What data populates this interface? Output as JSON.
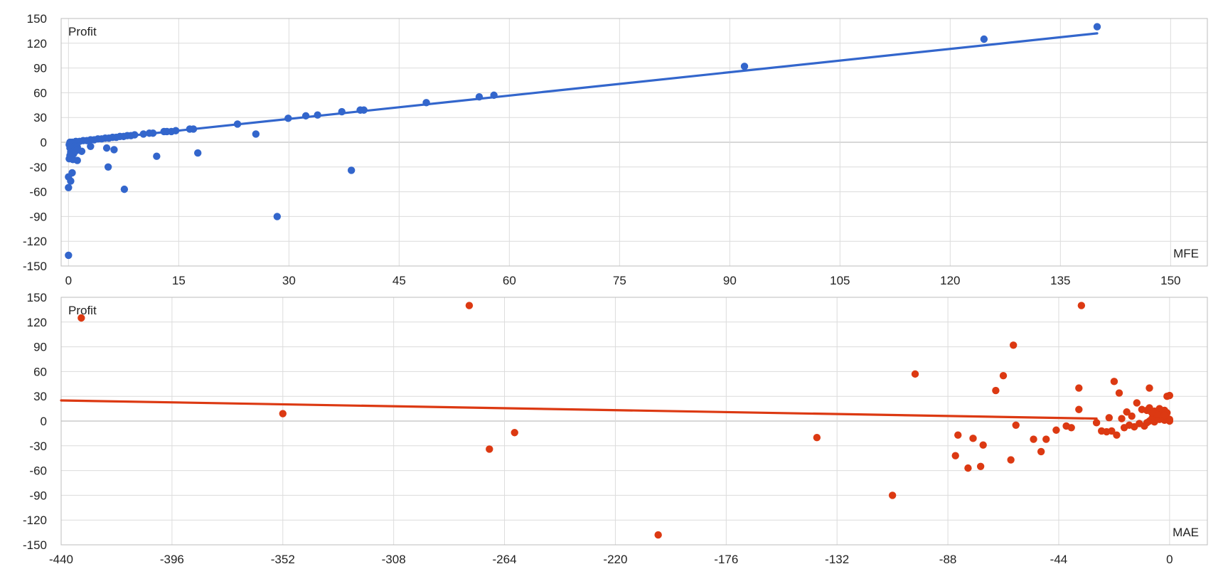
{
  "chart_data": [
    {
      "type": "scatter",
      "xlabel": "MFE",
      "ylabel": "Profit",
      "xlim": [
        -1,
        155
      ],
      "ylim": [
        -150,
        150
      ],
      "xticks": [
        0,
        15,
        30,
        45,
        60,
        75,
        90,
        105,
        120,
        135,
        150
      ],
      "yticks": [
        -150,
        -120,
        -90,
        -60,
        -30,
        0,
        30,
        60,
        90,
        120,
        150
      ],
      "grid": true,
      "color": "#3366cc",
      "trendline": {
        "x": [
          0,
          140
        ],
        "y": [
          0,
          132
        ]
      },
      "points": [
        [
          140,
          140
        ],
        [
          124.6,
          125
        ],
        [
          92,
          92
        ],
        [
          57.9,
          57
        ],
        [
          55.9,
          55
        ],
        [
          48.7,
          48
        ],
        [
          40.2,
          39
        ],
        [
          39.7,
          39
        ],
        [
          37.2,
          37
        ],
        [
          33.9,
          33
        ],
        [
          32.3,
          32
        ],
        [
          29.9,
          29
        ],
        [
          23,
          22
        ],
        [
          17,
          16
        ],
        [
          16.5,
          16
        ],
        [
          14.6,
          14
        ],
        [
          14,
          13
        ],
        [
          13.4,
          13
        ],
        [
          13,
          13
        ],
        [
          11.5,
          11
        ],
        [
          11,
          11
        ],
        [
          10.2,
          10
        ],
        [
          9,
          9
        ],
        [
          8.5,
          8
        ],
        [
          8,
          8
        ],
        [
          7.5,
          7
        ],
        [
          7,
          7
        ],
        [
          6.5,
          6
        ],
        [
          6,
          6
        ],
        [
          5.5,
          5
        ],
        [
          5,
          5
        ],
        [
          4.5,
          4
        ],
        [
          4,
          4
        ],
        [
          3.5,
          3
        ],
        [
          3,
          3
        ],
        [
          2.5,
          2
        ],
        [
          2,
          2
        ],
        [
          1.5,
          1
        ],
        [
          1,
          1
        ],
        [
          0.5,
          0
        ],
        [
          0.2,
          0
        ],
        [
          0.3,
          -1
        ],
        [
          0.6,
          -2
        ],
        [
          0.1,
          -3
        ],
        [
          0.4,
          -4
        ],
        [
          0.8,
          -5
        ],
        [
          1.2,
          -6
        ],
        [
          0.2,
          -7
        ],
        [
          0.5,
          -8
        ],
        [
          0.9,
          -9
        ],
        [
          1.1,
          -10
        ],
        [
          0.3,
          -12
        ],
        [
          0.7,
          -14
        ],
        [
          0.2,
          -16
        ],
        [
          0.4,
          -18
        ],
        [
          0.1,
          -20
        ],
        [
          0.6,
          -21
        ],
        [
          1.2,
          -22
        ],
        [
          1.8,
          -11
        ],
        [
          3,
          -5
        ],
        [
          5.2,
          -7
        ],
        [
          6.2,
          -9
        ],
        [
          5.4,
          -30
        ],
        [
          25.5,
          10
        ],
        [
          12,
          -17
        ],
        [
          17.6,
          -13
        ],
        [
          38.5,
          -34
        ],
        [
          0.5,
          -37
        ],
        [
          0,
          -42
        ],
        [
          0.3,
          -47
        ],
        [
          0,
          -55
        ],
        [
          7.6,
          -57
        ],
        [
          28.4,
          -90
        ],
        [
          0,
          -137
        ]
      ]
    },
    {
      "type": "scatter",
      "xlabel": "MAE",
      "ylabel": "Profit",
      "xlim": [
        -440,
        15
      ],
      "ylim": [
        -150,
        150
      ],
      "xticks": [
        -440,
        -396,
        -352,
        -308,
        -264,
        -220,
        -176,
        -132,
        -88,
        -44,
        0
      ],
      "yticks": [
        -150,
        -120,
        -90,
        -60,
        -30,
        0,
        30,
        60,
        90,
        120,
        150
      ],
      "grid": true,
      "color": "#dc3912",
      "trendline": {
        "x": [
          -440,
          -29
        ],
        "y": [
          25,
          3
        ]
      },
      "points": [
        [
          -432,
          125
        ],
        [
          -278,
          140
        ],
        [
          -35,
          140
        ],
        [
          -62,
          92
        ],
        [
          -101,
          57
        ],
        [
          -66,
          55
        ],
        [
          -69,
          37
        ],
        [
          -36,
          40
        ],
        [
          -22,
          48
        ],
        [
          -20,
          34
        ],
        [
          -8,
          40
        ],
        [
          -36,
          14
        ],
        [
          -270,
          -34
        ],
        [
          -260,
          -14
        ],
        [
          -352,
          9
        ],
        [
          -203,
          -138
        ],
        [
          -140,
          -20
        ],
        [
          -110,
          -90
        ],
        [
          -85,
          -42
        ],
        [
          -84,
          -17
        ],
        [
          -80,
          -57
        ],
        [
          -78,
          -21
        ],
        [
          -75,
          -55
        ],
        [
          -74,
          -29
        ],
        [
          -63,
          -47
        ],
        [
          -61,
          -5
        ],
        [
          -54,
          -22
        ],
        [
          -51,
          -37
        ],
        [
          -49,
          -22
        ],
        [
          -45,
          -11
        ],
        [
          -41,
          -6
        ],
        [
          -39,
          -8
        ],
        [
          -29,
          -2
        ],
        [
          -27,
          -12
        ],
        [
          -25,
          -13
        ],
        [
          -23,
          -12
        ],
        [
          -21,
          -17
        ],
        [
          -18,
          -8
        ],
        [
          -16,
          -5
        ],
        [
          -14,
          -7
        ],
        [
          -12,
          -3
        ],
        [
          -10,
          -6
        ],
        [
          -9,
          -2
        ],
        [
          -8,
          0
        ],
        [
          -7,
          3
        ],
        [
          -6,
          -1
        ],
        [
          -5,
          5
        ],
        [
          -4,
          2
        ],
        [
          -3,
          8
        ],
        [
          -2,
          1
        ],
        [
          -1,
          4
        ],
        [
          0,
          2
        ],
        [
          0,
          0
        ],
        [
          -1,
          10
        ],
        [
          -2,
          13
        ],
        [
          -4,
          15
        ],
        [
          -6,
          12
        ],
        [
          -8,
          16
        ],
        [
          -11,
          14
        ],
        [
          -13,
          22
        ],
        [
          -17,
          11
        ],
        [
          -19,
          3
        ],
        [
          -24,
          4
        ],
        [
          -15,
          6
        ],
        [
          -3,
          6
        ],
        [
          0,
          31
        ],
        [
          -1,
          30
        ],
        [
          -5,
          8
        ],
        [
          -7,
          10
        ],
        [
          -9,
          13
        ],
        [
          -2,
          7
        ]
      ]
    }
  ]
}
